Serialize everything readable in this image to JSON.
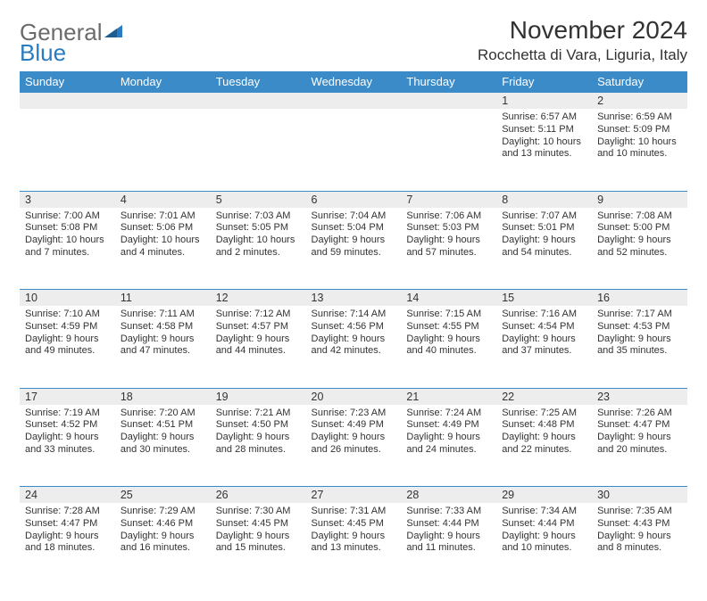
{
  "logo": {
    "text1": "General",
    "text2": "Blue"
  },
  "title": {
    "month": "November 2024",
    "location": "Rocchetta di Vara, Liguria, Italy"
  },
  "header_bg": "#3b8bc8",
  "header_fg": "#ffffff",
  "daynum_bg": "#ededed",
  "border_color": "#3b8bc8",
  "weekdays": [
    "Sunday",
    "Monday",
    "Tuesday",
    "Wednesday",
    "Thursday",
    "Friday",
    "Saturday"
  ],
  "weeks": [
    [
      {
        "n": "",
        "sr": "",
        "ss": "",
        "dl": ""
      },
      {
        "n": "",
        "sr": "",
        "ss": "",
        "dl": ""
      },
      {
        "n": "",
        "sr": "",
        "ss": "",
        "dl": ""
      },
      {
        "n": "",
        "sr": "",
        "ss": "",
        "dl": ""
      },
      {
        "n": "",
        "sr": "",
        "ss": "",
        "dl": ""
      },
      {
        "n": "1",
        "sr": "Sunrise: 6:57 AM",
        "ss": "Sunset: 5:11 PM",
        "dl": "Daylight: 10 hours and 13 minutes."
      },
      {
        "n": "2",
        "sr": "Sunrise: 6:59 AM",
        "ss": "Sunset: 5:09 PM",
        "dl": "Daylight: 10 hours and 10 minutes."
      }
    ],
    [
      {
        "n": "3",
        "sr": "Sunrise: 7:00 AM",
        "ss": "Sunset: 5:08 PM",
        "dl": "Daylight: 10 hours and 7 minutes."
      },
      {
        "n": "4",
        "sr": "Sunrise: 7:01 AM",
        "ss": "Sunset: 5:06 PM",
        "dl": "Daylight: 10 hours and 4 minutes."
      },
      {
        "n": "5",
        "sr": "Sunrise: 7:03 AM",
        "ss": "Sunset: 5:05 PM",
        "dl": "Daylight: 10 hours and 2 minutes."
      },
      {
        "n": "6",
        "sr": "Sunrise: 7:04 AM",
        "ss": "Sunset: 5:04 PM",
        "dl": "Daylight: 9 hours and 59 minutes."
      },
      {
        "n": "7",
        "sr": "Sunrise: 7:06 AM",
        "ss": "Sunset: 5:03 PM",
        "dl": "Daylight: 9 hours and 57 minutes."
      },
      {
        "n": "8",
        "sr": "Sunrise: 7:07 AM",
        "ss": "Sunset: 5:01 PM",
        "dl": "Daylight: 9 hours and 54 minutes."
      },
      {
        "n": "9",
        "sr": "Sunrise: 7:08 AM",
        "ss": "Sunset: 5:00 PM",
        "dl": "Daylight: 9 hours and 52 minutes."
      }
    ],
    [
      {
        "n": "10",
        "sr": "Sunrise: 7:10 AM",
        "ss": "Sunset: 4:59 PM",
        "dl": "Daylight: 9 hours and 49 minutes."
      },
      {
        "n": "11",
        "sr": "Sunrise: 7:11 AM",
        "ss": "Sunset: 4:58 PM",
        "dl": "Daylight: 9 hours and 47 minutes."
      },
      {
        "n": "12",
        "sr": "Sunrise: 7:12 AM",
        "ss": "Sunset: 4:57 PM",
        "dl": "Daylight: 9 hours and 44 minutes."
      },
      {
        "n": "13",
        "sr": "Sunrise: 7:14 AM",
        "ss": "Sunset: 4:56 PM",
        "dl": "Daylight: 9 hours and 42 minutes."
      },
      {
        "n": "14",
        "sr": "Sunrise: 7:15 AM",
        "ss": "Sunset: 4:55 PM",
        "dl": "Daylight: 9 hours and 40 minutes."
      },
      {
        "n": "15",
        "sr": "Sunrise: 7:16 AM",
        "ss": "Sunset: 4:54 PM",
        "dl": "Daylight: 9 hours and 37 minutes."
      },
      {
        "n": "16",
        "sr": "Sunrise: 7:17 AM",
        "ss": "Sunset: 4:53 PM",
        "dl": "Daylight: 9 hours and 35 minutes."
      }
    ],
    [
      {
        "n": "17",
        "sr": "Sunrise: 7:19 AM",
        "ss": "Sunset: 4:52 PM",
        "dl": "Daylight: 9 hours and 33 minutes."
      },
      {
        "n": "18",
        "sr": "Sunrise: 7:20 AM",
        "ss": "Sunset: 4:51 PM",
        "dl": "Daylight: 9 hours and 30 minutes."
      },
      {
        "n": "19",
        "sr": "Sunrise: 7:21 AM",
        "ss": "Sunset: 4:50 PM",
        "dl": "Daylight: 9 hours and 28 minutes."
      },
      {
        "n": "20",
        "sr": "Sunrise: 7:23 AM",
        "ss": "Sunset: 4:49 PM",
        "dl": "Daylight: 9 hours and 26 minutes."
      },
      {
        "n": "21",
        "sr": "Sunrise: 7:24 AM",
        "ss": "Sunset: 4:49 PM",
        "dl": "Daylight: 9 hours and 24 minutes."
      },
      {
        "n": "22",
        "sr": "Sunrise: 7:25 AM",
        "ss": "Sunset: 4:48 PM",
        "dl": "Daylight: 9 hours and 22 minutes."
      },
      {
        "n": "23",
        "sr": "Sunrise: 7:26 AM",
        "ss": "Sunset: 4:47 PM",
        "dl": "Daylight: 9 hours and 20 minutes."
      }
    ],
    [
      {
        "n": "24",
        "sr": "Sunrise: 7:28 AM",
        "ss": "Sunset: 4:47 PM",
        "dl": "Daylight: 9 hours and 18 minutes."
      },
      {
        "n": "25",
        "sr": "Sunrise: 7:29 AM",
        "ss": "Sunset: 4:46 PM",
        "dl": "Daylight: 9 hours and 16 minutes."
      },
      {
        "n": "26",
        "sr": "Sunrise: 7:30 AM",
        "ss": "Sunset: 4:45 PM",
        "dl": "Daylight: 9 hours and 15 minutes."
      },
      {
        "n": "27",
        "sr": "Sunrise: 7:31 AM",
        "ss": "Sunset: 4:45 PM",
        "dl": "Daylight: 9 hours and 13 minutes."
      },
      {
        "n": "28",
        "sr": "Sunrise: 7:33 AM",
        "ss": "Sunset: 4:44 PM",
        "dl": "Daylight: 9 hours and 11 minutes."
      },
      {
        "n": "29",
        "sr": "Sunrise: 7:34 AM",
        "ss": "Sunset: 4:44 PM",
        "dl": "Daylight: 9 hours and 10 minutes."
      },
      {
        "n": "30",
        "sr": "Sunrise: 7:35 AM",
        "ss": "Sunset: 4:43 PM",
        "dl": "Daylight: 9 hours and 8 minutes."
      }
    ]
  ]
}
